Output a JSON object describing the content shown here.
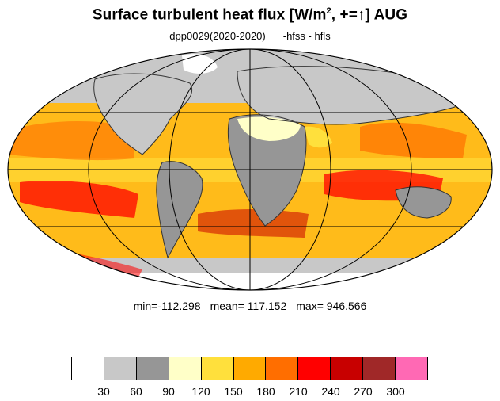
{
  "title": {
    "main": "Surface turbulent heat flux [W/m",
    "sup": "2",
    "suffix": ", +=↑]  AUG"
  },
  "subtitle": {
    "experiment": "dpp0029(2020-2020)",
    "variables": "-hfss - hfls"
  },
  "stats": {
    "min": "min=-112.298",
    "mean": "mean= 117.152",
    "max": "max= 946.566"
  },
  "colorbar": {
    "colors": [
      "#ffffff",
      "#c8c8c8",
      "#969696",
      "#ffffc8",
      "#ffe03c",
      "#ffaa00",
      "#ff6e00",
      "#ff0000",
      "#c80000",
      "#a02828",
      "#ff69b4"
    ],
    "ticks": [
      "30",
      "60",
      "90",
      "120",
      "150",
      "180",
      "210",
      "240",
      "270",
      "300"
    ]
  },
  "map_colors": {
    "ocean_base": "#ffbb1a",
    "land_cold": "#969696",
    "land_light": "#c8c8c8",
    "pale": "#ffffc8",
    "yellow": "#ffe03c",
    "orange": "#ff6e00",
    "red": "#ff0000",
    "darkred": "#c80000",
    "pink": "#ff69b4"
  }
}
